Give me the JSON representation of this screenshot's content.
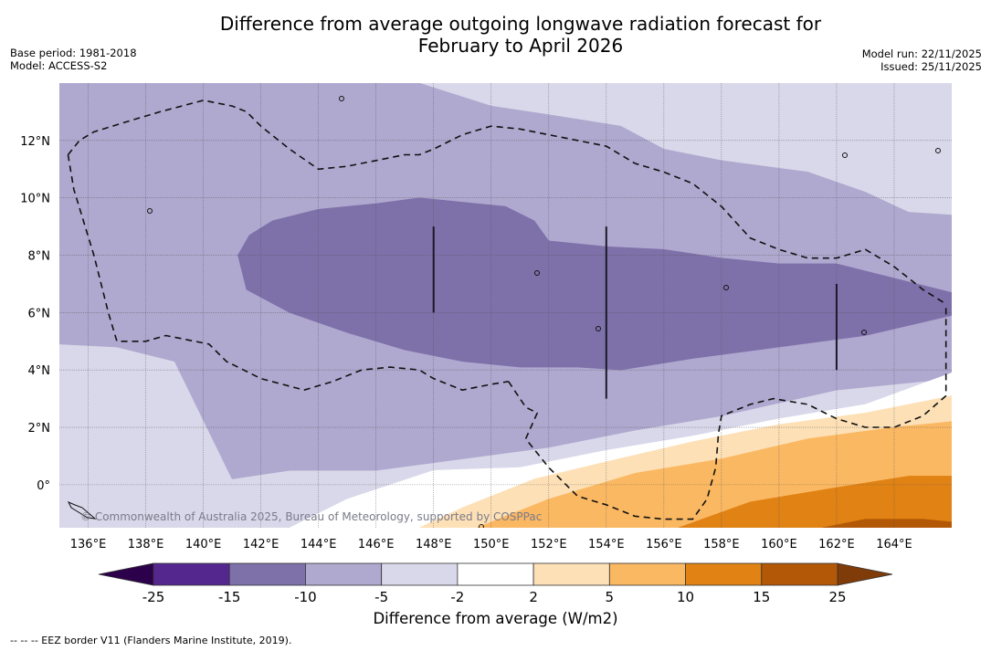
{
  "title": {
    "line1": "Difference from average outgoing longwave radiation forecast for",
    "line2": "February to April 2026"
  },
  "meta_left": {
    "base_period": "Base period: 1981-2018",
    "model": "Model: ACCESS-S2"
  },
  "meta_right": {
    "model_run": "Model run: 22/11/2025",
    "issued": "Issued: 25/11/2025"
  },
  "copyright": "© Commonwealth of Australia 2025, Bureau of Meteorology, supported by COSPPac",
  "footnote": "--  --  -- EEZ border V11 (Flanders Marine Institute, 2019).",
  "chart_data": {
    "type": "heatmap",
    "title": "Difference from average outgoing longwave radiation forecast for February to April 2026",
    "xlabel": "",
    "ylabel": "",
    "xlim": [
      135.0,
      166.0
    ],
    "ylim": [
      -1.5,
      14.0
    ],
    "x_ticks": [
      136,
      138,
      140,
      142,
      144,
      146,
      148,
      150,
      152,
      154,
      156,
      158,
      160,
      162,
      164
    ],
    "x_tick_labels": [
      "136°E",
      "138°E",
      "140°E",
      "142°E",
      "144°E",
      "146°E",
      "148°E",
      "150°E",
      "152°E",
      "154°E",
      "156°E",
      "158°E",
      "160°E",
      "162°E",
      "164°E"
    ],
    "y_ticks": [
      0,
      2,
      4,
      6,
      8,
      10,
      12
    ],
    "y_tick_labels": [
      "0°",
      "2°N",
      "4°N",
      "6°N",
      "8°N",
      "10°N",
      "12°N"
    ],
    "grid": true,
    "colorbar": {
      "label": "Difference from average (W/m2)",
      "location": "bottom",
      "extend": "both",
      "boundaries": [
        -25,
        -15,
        -10,
        -5,
        -2,
        2,
        5,
        10,
        15,
        25
      ],
      "tick_labels": [
        "-25",
        "-15",
        "-10",
        "-5",
        "-2",
        "2",
        "5",
        "10",
        "15",
        "25"
      ],
      "colors": [
        "#54278f",
        "#7e70a9",
        "#afa8cf",
        "#d8d8ea",
        "#ffffff",
        "#fde0b6",
        "#fbb862",
        "#e08214",
        "#b35806"
      ],
      "under_color": "#2d004b",
      "over_color": "#7f3b08"
    },
    "regions": [
      {
        "level": "-5 to -2",
        "color": "#d8d8ea",
        "description": "background; north-east and southern areas"
      },
      {
        "level": "-10 to -5",
        "color": "#afa8cf",
        "points": [
          [
            135,
            14
          ],
          [
            147.5,
            14
          ],
          [
            150,
            13.2
          ],
          [
            152,
            12.9
          ],
          [
            154.5,
            12.5
          ],
          [
            156,
            11.7
          ],
          [
            158,
            11.3
          ],
          [
            161,
            10.9
          ],
          [
            163,
            10.2
          ],
          [
            164.5,
            9.5
          ],
          [
            166,
            9.4
          ],
          [
            166,
            3.7
          ],
          [
            162,
            3.3
          ],
          [
            158,
            2.4
          ],
          [
            155,
            1.9
          ],
          [
            152,
            1.3
          ],
          [
            149,
            0.9
          ],
          [
            146,
            0.5
          ],
          [
            143,
            0.5
          ],
          [
            141,
            0.2
          ],
          [
            139,
            4.3
          ],
          [
            137,
            4.8
          ],
          [
            135,
            4.9
          ]
        ]
      },
      {
        "level": "-15 to -10",
        "color": "#7e70a9",
        "points": [
          [
            141.2,
            8.0
          ],
          [
            141.6,
            8.7
          ],
          [
            142.4,
            9.2
          ],
          [
            144,
            9.6
          ],
          [
            146,
            9.8
          ],
          [
            147.5,
            10.0
          ],
          [
            148.5,
            9.9
          ],
          [
            149.5,
            9.8
          ],
          [
            150.5,
            9.7
          ],
          [
            151.5,
            9.2
          ],
          [
            152,
            8.5
          ],
          [
            154,
            8.3
          ],
          [
            156,
            8.2
          ],
          [
            158,
            7.9
          ],
          [
            160,
            7.7
          ],
          [
            162,
            7.7
          ],
          [
            164,
            7.2
          ],
          [
            166,
            6.7
          ],
          [
            166,
            5.9
          ],
          [
            163,
            5.2
          ],
          [
            160,
            4.8
          ],
          [
            157,
            4.4
          ],
          [
            154.5,
            4.0
          ],
          [
            153,
            4.1
          ],
          [
            151,
            4.1
          ],
          [
            149,
            4.3
          ],
          [
            147,
            4.7
          ],
          [
            145,
            5.3
          ],
          [
            143,
            6.0
          ],
          [
            141.5,
            6.8
          ]
        ]
      },
      {
        "level": "-2 to 2",
        "color": "#ffffff",
        "points": [
          [
            143,
            -1.5
          ],
          [
            145,
            -0.5
          ],
          [
            148,
            0.5
          ],
          [
            151,
            0.6
          ],
          [
            154,
            1.2
          ],
          [
            157,
            1.7
          ],
          [
            160,
            2.3
          ],
          [
            163,
            2.8
          ],
          [
            166,
            3.9
          ],
          [
            166,
            -1.5
          ]
        ]
      },
      {
        "level": "2 to 5",
        "color": "#fde0b6",
        "points": [
          [
            147.5,
            -1.5
          ],
          [
            149,
            -0.8
          ],
          [
            151.5,
            0.2
          ],
          [
            154,
            0.8
          ],
          [
            157,
            1.5
          ],
          [
            160,
            2.1
          ],
          [
            163,
            2.5
          ],
          [
            166,
            3.1
          ],
          [
            166,
            -1.5
          ]
        ]
      },
      {
        "level": "5 to 10",
        "color": "#fbb862",
        "points": [
          [
            149.5,
            -1.5
          ],
          [
            152,
            -0.5
          ],
          [
            155,
            0.4
          ],
          [
            158,
            0.9
          ],
          [
            161,
            1.6
          ],
          [
            164,
            2.0
          ],
          [
            166,
            2.2
          ],
          [
            166,
            -1.5
          ]
        ]
      },
      {
        "level": "10 to 15",
        "color": "#e08214",
        "points": [
          [
            156.5,
            -1.5
          ],
          [
            159,
            -0.6
          ],
          [
            162,
            -0.1
          ],
          [
            164.5,
            0.3
          ],
          [
            166,
            0.3
          ],
          [
            166,
            -1.5
          ]
        ]
      },
      {
        "level": "15 to 25",
        "color": "#b35806",
        "points": [
          [
            161.5,
            -1.5
          ],
          [
            163,
            -1.2
          ],
          [
            165,
            -1.2
          ],
          [
            166,
            -1.3
          ],
          [
            166,
            -1.5
          ]
        ]
      }
    ],
    "eez_borders": [
      {
        "name": "EEZ border west",
        "points": [
          [
            135.3,
            11.5
          ],
          [
            135.5,
            10.3
          ],
          [
            136.2,
            8.0
          ],
          [
            136.7,
            6.0
          ],
          [
            137.0,
            5.0
          ],
          [
            138,
            5.0
          ],
          [
            138.7,
            5.2
          ],
          [
            140.2,
            4.9
          ],
          [
            140.8,
            4.3
          ],
          [
            142,
            3.7
          ],
          [
            143.5,
            3.3
          ],
          [
            144.5,
            3.6
          ],
          [
            145.5,
            4.0
          ],
          [
            146.5,
            4.1
          ],
          [
            147.5,
            4.0
          ],
          [
            148,
            3.7
          ],
          [
            149,
            3.3
          ],
          [
            150,
            3.5
          ],
          [
            150.6,
            3.6
          ]
        ]
      },
      {
        "name": "EEZ border west top",
        "points": [
          [
            135.3,
            11.5
          ],
          [
            135.7,
            12.0
          ],
          [
            136.2,
            12.3
          ],
          [
            137.5,
            12.7
          ],
          [
            138.5,
            13.0
          ],
          [
            140,
            13.4
          ],
          [
            141,
            13.2
          ],
          [
            141.5,
            13.0
          ],
          [
            142,
            12.5
          ],
          [
            143,
            11.7
          ],
          [
            144,
            11.0
          ],
          [
            145,
            11.1
          ],
          [
            147,
            11.5
          ],
          [
            147.5,
            11.5
          ],
          [
            148,
            11.7
          ],
          [
            149,
            12.2
          ],
          [
            150,
            12.5
          ],
          [
            151,
            12.4
          ],
          [
            152,
            12.2
          ],
          [
            153,
            12.0
          ],
          [
            154,
            11.8
          ],
          [
            155,
            11.2
          ],
          [
            156,
            10.9
          ],
          [
            157,
            10.5
          ],
          [
            158,
            9.7
          ],
          [
            159,
            8.6
          ],
          [
            160,
            8.2
          ],
          [
            161,
            7.9
          ],
          [
            162,
            7.9
          ],
          [
            163,
            8.2
          ],
          [
            164,
            7.6
          ],
          [
            165,
            6.8
          ],
          [
            165.8,
            6.3
          ]
        ]
      },
      {
        "name": "EEZ border east",
        "points": [
          [
            150.6,
            3.6
          ],
          [
            151.2,
            2.7
          ],
          [
            151.6,
            2.5
          ],
          [
            151.2,
            1.6
          ],
          [
            152,
            0.6
          ],
          [
            153,
            -0.4
          ],
          [
            154,
            -0.7
          ],
          [
            155,
            -1.1
          ],
          [
            156,
            -1.2
          ],
          [
            157,
            -1.2
          ],
          [
            157.5,
            -0.5
          ],
          [
            157.8,
            0.6
          ],
          [
            157.9,
            1.8
          ],
          [
            158,
            2.4
          ],
          [
            159,
            2.8
          ],
          [
            159.8,
            3.0
          ],
          [
            161,
            2.8
          ],
          [
            162,
            2.3
          ],
          [
            163,
            2.0
          ],
          [
            164,
            2.0
          ],
          [
            165,
            2.4
          ],
          [
            165.8,
            3.1
          ],
          [
            165.8,
            6.3
          ]
        ]
      }
    ],
    "vertical_lines": [
      [
        148,
        6,
        9
      ],
      [
        154,
        3,
        9
      ],
      [
        162,
        4,
        7
      ]
    ]
  }
}
